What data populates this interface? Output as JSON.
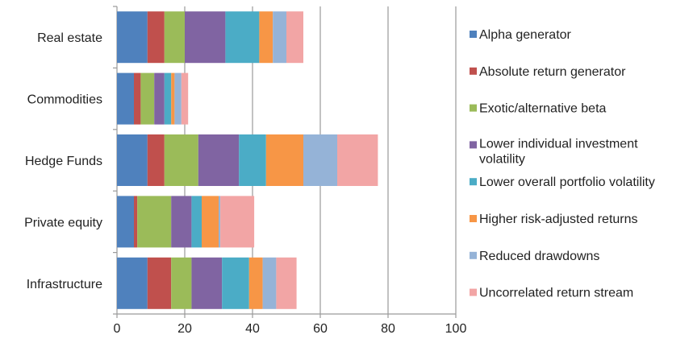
{
  "chart_data": {
    "type": "bar",
    "orientation": "horizontal",
    "stacked": true,
    "title": "",
    "xlabel": "",
    "ylabel": "",
    "xlim": [
      0,
      100
    ],
    "x_ticks": [
      "0",
      "20",
      "40",
      "60",
      "80",
      "100"
    ],
    "grid": true,
    "legend_position": "right",
    "categories": [
      "Real estate",
      "Commodities",
      "Hedge Funds",
      "Private equity",
      "Infrastructure"
    ],
    "series": [
      {
        "name": "Alpha generator",
        "color": "#4f81bd",
        "values": [
          9,
          5,
          9,
          5,
          9
        ]
      },
      {
        "name": "Absolute return generator",
        "color": "#c0504d",
        "values": [
          5,
          2,
          5,
          1,
          7
        ]
      },
      {
        "name": "Exotic/alternative beta",
        "color": "#9bbb59",
        "values": [
          6,
          4,
          10,
          10,
          6
        ]
      },
      {
        "name": "Lower individual investment volatility",
        "color": "#8064a2",
        "values": [
          12,
          3,
          12,
          6,
          9
        ]
      },
      {
        "name": "Lower overall portfolio volatility",
        "color": "#4bacc6",
        "values": [
          10,
          2,
          8,
          3,
          8
        ]
      },
      {
        "name": "Higher risk-adjusted returns",
        "color": "#f79646",
        "values": [
          4,
          1,
          11,
          5,
          4
        ]
      },
      {
        "name": "Reduced drawdowns",
        "color": "#95b3d7",
        "values": [
          4,
          2,
          10,
          0.5,
          4
        ]
      },
      {
        "name": "Uncorrelated return stream",
        "color": "#f2a5a5",
        "values": [
          5,
          2,
          12,
          10,
          6
        ]
      }
    ]
  }
}
